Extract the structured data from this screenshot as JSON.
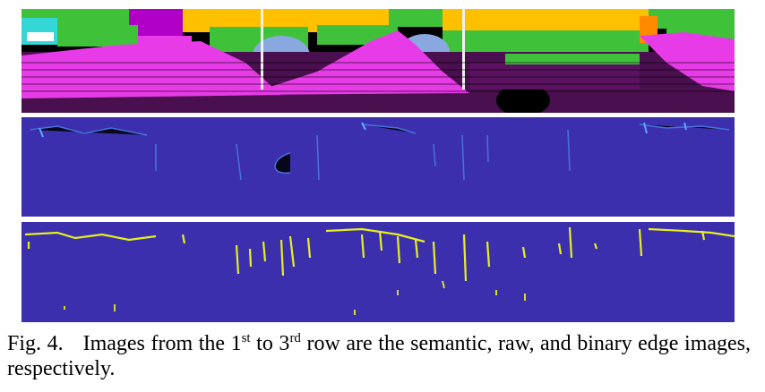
{
  "figure": {
    "panels": [
      {
        "id": "semantic",
        "row": 1,
        "kind": "semantic segmentation image"
      },
      {
        "id": "raw",
        "row": 2,
        "kind": "raw edge image"
      },
      {
        "id": "binary",
        "row": 3,
        "kind": "binary edge image"
      }
    ],
    "colors": {
      "edge_background": "#3b2fad",
      "raw_edge": "#4a7fe6",
      "binary_edge": "#e6f01e",
      "semantic_magenta": "#e83be8",
      "semantic_purple": "#4a0f4e",
      "semantic_green": "#3fc23a",
      "semantic_yellow": "#ffc000",
      "semantic_blue": "#8aa8e0"
    },
    "caption": {
      "label": "Fig. 4.",
      "part1": "Images from the 1",
      "sup1": "st",
      "part2": " to 3",
      "sup2": "rd",
      "part3": " row are the semantic, raw, and binary edge images, respectively."
    }
  }
}
